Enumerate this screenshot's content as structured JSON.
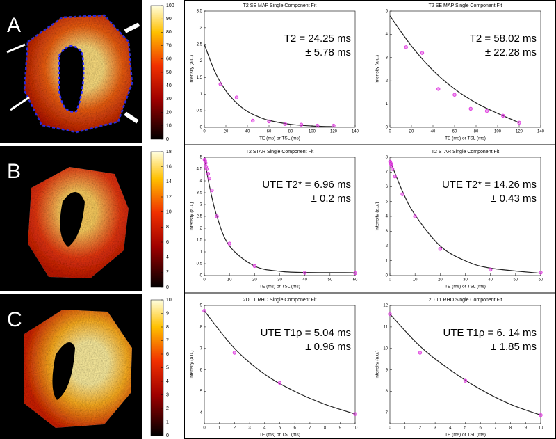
{
  "chart_data": [
    {
      "type": "scatter",
      "title": "T2 SE MAP Single Component Fit",
      "xlabel": "TE (ms) or TSL (ms)",
      "ylabel": "Intensity (a.u.)",
      "annotation": [
        "T2 = 24.25 ms",
        "± 5.78 ms"
      ],
      "x": [
        15,
        30,
        45,
        60,
        75,
        90,
        105,
        120
      ],
      "values": [
        1.3,
        0.9,
        0.2,
        0.18,
        0.1,
        0.08,
        0.05,
        0.05
      ],
      "fit_x": [
        0,
        10,
        20,
        30,
        40,
        50,
        60,
        80,
        100,
        120
      ],
      "fit_values": [
        2.5,
        1.66,
        1.1,
        0.73,
        0.48,
        0.32,
        0.21,
        0.09,
        0.04,
        0.02
      ],
      "xlim": [
        0,
        140
      ],
      "ylim": [
        0,
        3.5
      ],
      "xticks": [
        0,
        20,
        40,
        60,
        80,
        100,
        120,
        140
      ],
      "yticks": [
        0,
        0.5,
        1,
        1.5,
        2,
        2.5,
        3,
        3.5
      ],
      "color": "#e040e0"
    },
    {
      "type": "scatter",
      "title": "T2 SE MAP Single Component Fit",
      "xlabel": "TE (ms) or TSL (ms)",
      "ylabel": "Intensity (a.u.)",
      "annotation": [
        "T2 = 58.02 ms",
        "± 22.28 ms"
      ],
      "x": [
        15,
        30,
        45,
        60,
        75,
        90,
        105,
        120
      ],
      "values": [
        3.45,
        3.2,
        1.65,
        1.4,
        0.8,
        0.7,
        0.5,
        0.2
      ],
      "fit_x": [
        0,
        20,
        40,
        60,
        80,
        100,
        120
      ],
      "fit_values": [
        4.8,
        3.5,
        2.45,
        1.65,
        1.05,
        0.6,
        0.2
      ],
      "xlim": [
        0,
        140
      ],
      "ylim": [
        0,
        5
      ],
      "xticks": [
        0,
        20,
        40,
        60,
        80,
        100,
        120,
        140
      ],
      "yticks": [
        0,
        1,
        2,
        3,
        4,
        5
      ],
      "color": "#e040e0"
    },
    {
      "type": "scatter",
      "title": "T2 STAR Single Component Fit",
      "xlabel": "TE (ms) or TSL (ms)",
      "ylabel": "Intensity (a.u.)",
      "annotation": [
        "UTE T2* = 6.96 ms",
        "± 0.2 ms"
      ],
      "x": [
        0.1,
        0.3,
        0.5,
        0.7,
        1,
        1.5,
        2,
        3,
        5,
        10,
        20,
        40,
        60
      ],
      "values": [
        4.9,
        4.85,
        4.75,
        4.6,
        4.5,
        4.3,
        4.1,
        3.6,
        2.5,
        1.35,
        0.4,
        0.12,
        0.1
      ],
      "fit_x": [
        0,
        2,
        5,
        10,
        20,
        30,
        40,
        60
      ],
      "fit_values": [
        5,
        3.8,
        2.5,
        1.25,
        0.4,
        0.18,
        0.13,
        0.12
      ],
      "xlim": [
        0,
        60
      ],
      "ylim": [
        0,
        5
      ],
      "xticks": [
        0,
        10,
        20,
        30,
        40,
        50,
        60
      ],
      "yticks": [
        0,
        0.5,
        1,
        1.5,
        2,
        2.5,
        3,
        3.5,
        4,
        4.5,
        5
      ],
      "color": "#e040e0"
    },
    {
      "type": "scatter",
      "title": "T2 STAR Single Component Fit",
      "xlabel": "TE (ms) or TSL (ms)",
      "ylabel": "Intensity (a.u.)",
      "annotation": [
        "UTE T2* = 14.26 ms",
        "± 0.43 ms"
      ],
      "x": [
        0.1,
        0.3,
        0.5,
        0.7,
        1,
        2,
        5,
        10,
        20,
        40,
        60
      ],
      "values": [
        7.7,
        7.6,
        7.5,
        7.4,
        7.2,
        6.7,
        5.5,
        4,
        1.8,
        0.4,
        0.2
      ],
      "fit_x": [
        0,
        5,
        10,
        20,
        30,
        40,
        60
      ],
      "fit_values": [
        7.8,
        5.7,
        4.1,
        2.0,
        1.0,
        0.5,
        0.15
      ],
      "xlim": [
        0,
        60
      ],
      "ylim": [
        0,
        8
      ],
      "xticks": [
        0,
        10,
        20,
        30,
        40,
        50,
        60
      ],
      "yticks": [
        0,
        1,
        2,
        3,
        4,
        5,
        6,
        7,
        8
      ],
      "color": "#e040e0"
    },
    {
      "type": "scatter",
      "title": "2D T1 RHO Single Component Fit",
      "xlabel": "TE (ms) or TSL (ms)",
      "ylabel": "Intensity (a.u.)",
      "annotation": [
        "UTE T1ρ = 5.04 ms",
        "± 0.96 ms"
      ],
      "x": [
        0,
        2,
        5,
        10
      ],
      "values": [
        8.75,
        6.8,
        5.4,
        3.95
      ],
      "fit_x": [
        0,
        2,
        4,
        6,
        8,
        10
      ],
      "fit_values": [
        8.75,
        7.0,
        5.8,
        5.0,
        4.4,
        3.95
      ],
      "xlim": [
        0,
        10
      ],
      "ylim": [
        3.5,
        9
      ],
      "xticks": [
        0,
        1,
        2,
        3,
        4,
        5,
        6,
        7,
        8,
        9,
        10
      ],
      "yticks": [
        4,
        5,
        6,
        7,
        8,
        9
      ],
      "color": "#e040e0"
    },
    {
      "type": "scatter",
      "title": "2D T1 RHO Single Component Fit",
      "xlabel": "TE (ms) or TSL (ms)",
      "ylabel": "Intensity (a.u.)",
      "annotation": [
        "UTE T1ρ = 6. 14 ms",
        "± 1.85 ms"
      ],
      "x": [
        0,
        2,
        5,
        10
      ],
      "values": [
        11.6,
        9.8,
        8.5,
        6.9
      ],
      "fit_x": [
        0,
        2,
        4,
        6,
        8,
        10
      ],
      "fit_values": [
        11.6,
        10.1,
        9.0,
        8.1,
        7.4,
        6.9
      ],
      "xlim": [
        0,
        10
      ],
      "ylim": [
        6.5,
        12
      ],
      "xticks": [
        0,
        1,
        2,
        3,
        4,
        5,
        6,
        7,
        8,
        9,
        10
      ],
      "yticks": [
        7,
        8,
        9,
        10,
        11,
        12
      ],
      "color": "#e040e0"
    }
  ],
  "panels": [
    {
      "label": "A",
      "colorbar_lim": [
        0,
        100
      ],
      "colorbar_ticks": [
        0,
        10,
        20,
        30,
        40,
        50,
        60,
        70,
        80,
        90,
        100
      ]
    },
    {
      "label": "B",
      "colorbar_lim": [
        0,
        18
      ],
      "colorbar_ticks": [
        0,
        2,
        4,
        6,
        8,
        10,
        12,
        14,
        16,
        18
      ]
    },
    {
      "label": "C",
      "colorbar_lim": [
        0,
        10
      ],
      "colorbar_ticks": [
        0,
        1,
        2,
        3,
        4,
        5,
        6,
        7,
        8,
        9,
        10
      ]
    }
  ]
}
